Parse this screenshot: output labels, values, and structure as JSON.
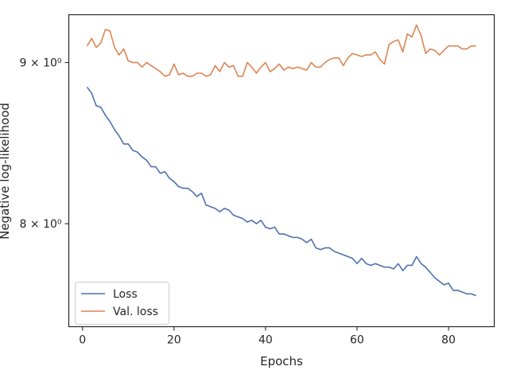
{
  "chart_data": {
    "type": "line",
    "xlabel": "Epochs",
    "ylabel": "Negative log-likelihood",
    "xlim": [
      -3,
      90
    ],
    "ylim": [
      7.42,
      9.32
    ],
    "y_scale": "log",
    "x_ticks": [
      0,
      20,
      40,
      60,
      80
    ],
    "x_tick_labels": [
      "0",
      "20",
      "40",
      "60",
      "80"
    ],
    "y_ticks": [
      8,
      9
    ],
    "y_tick_labels": [
      "8 × 10⁰",
      "9 × 10⁰"
    ],
    "grid": false,
    "legend_position": "lower-left",
    "series": [
      {
        "name": "Loss",
        "color": "#4c72b0",
        "x": [
          1,
          2,
          3,
          4,
          5,
          6,
          7,
          8,
          9,
          10,
          11,
          12,
          13,
          14,
          15,
          16,
          17,
          18,
          19,
          20,
          21,
          22,
          23,
          24,
          25,
          26,
          27,
          28,
          29,
          30,
          31,
          32,
          33,
          34,
          35,
          36,
          37,
          38,
          39,
          40,
          41,
          42,
          43,
          44,
          45,
          46,
          47,
          48,
          49,
          50,
          51,
          52,
          53,
          54,
          55,
          56,
          57,
          58,
          59,
          60,
          61,
          62,
          63,
          64,
          65,
          66,
          67,
          68,
          69,
          70,
          71,
          72,
          73,
          74,
          75,
          76,
          77,
          78,
          79,
          80,
          81,
          82,
          83,
          84,
          85,
          86
        ],
        "values": [
          8.84,
          8.8,
          8.72,
          8.71,
          8.66,
          8.62,
          8.57,
          8.53,
          8.48,
          8.48,
          8.44,
          8.43,
          8.4,
          8.38,
          8.34,
          8.34,
          8.3,
          8.31,
          8.27,
          8.25,
          8.22,
          8.21,
          8.21,
          8.19,
          8.16,
          8.18,
          8.11,
          8.1,
          8.09,
          8.07,
          8.09,
          8.08,
          8.05,
          8.04,
          8.03,
          8.01,
          8.02,
          8.0,
          8.02,
          7.98,
          7.97,
          7.98,
          7.94,
          7.94,
          7.93,
          7.92,
          7.92,
          7.91,
          7.89,
          7.91,
          7.86,
          7.85,
          7.86,
          7.86,
          7.84,
          7.83,
          7.82,
          7.81,
          7.8,
          7.77,
          7.8,
          7.77,
          7.76,
          7.77,
          7.76,
          7.75,
          7.75,
          7.74,
          7.77,
          7.73,
          7.76,
          7.76,
          7.81,
          7.77,
          7.75,
          7.72,
          7.69,
          7.67,
          7.65,
          7.66,
          7.62,
          7.62,
          7.61,
          7.6,
          7.6,
          7.59
        ]
      },
      {
        "name": "Val. loss",
        "color": "#dd8452",
        "x": [
          1,
          2,
          3,
          4,
          5,
          6,
          7,
          8,
          9,
          10,
          11,
          12,
          13,
          14,
          15,
          16,
          17,
          18,
          19,
          20,
          21,
          22,
          23,
          24,
          25,
          26,
          27,
          28,
          29,
          30,
          31,
          32,
          33,
          34,
          35,
          36,
          37,
          38,
          39,
          40,
          41,
          42,
          43,
          44,
          45,
          46,
          47,
          48,
          49,
          50,
          51,
          52,
          53,
          54,
          55,
          56,
          57,
          58,
          59,
          60,
          61,
          62,
          63,
          64,
          65,
          66,
          67,
          68,
          69,
          70,
          71,
          72,
          73,
          74,
          75,
          76,
          77,
          78,
          79,
          80,
          81,
          82,
          83,
          84,
          85,
          86
        ],
        "values": [
          9.11,
          9.16,
          9.1,
          9.13,
          9.22,
          9.21,
          9.1,
          9.05,
          9.09,
          9.01,
          9.0,
          9.0,
          8.97,
          9.0,
          8.98,
          8.96,
          8.94,
          8.91,
          8.92,
          8.99,
          8.92,
          8.93,
          8.91,
          8.91,
          8.93,
          8.93,
          8.91,
          8.92,
          8.98,
          8.94,
          9.0,
          8.97,
          8.98,
          8.91,
          8.91,
          9.0,
          8.97,
          8.93,
          8.97,
          9.0,
          8.94,
          8.96,
          8.99,
          8.95,
          8.97,
          8.96,
          8.97,
          8.96,
          8.95,
          9.0,
          8.97,
          8.97,
          9.0,
          9.02,
          9.03,
          9.03,
          8.98,
          9.03,
          9.06,
          9.05,
          9.04,
          9.05,
          9.05,
          9.07,
          9.02,
          8.99,
          9.12,
          9.14,
          9.15,
          9.07,
          9.19,
          9.17,
          9.25,
          9.18,
          9.06,
          9.09,
          9.08,
          9.05,
          9.08,
          9.11,
          9.11,
          9.11,
          9.09,
          9.09,
          9.11,
          9.11
        ]
      }
    ]
  }
}
